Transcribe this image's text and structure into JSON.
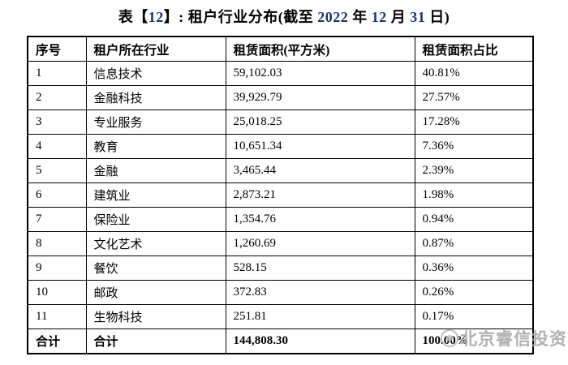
{
  "title": {
    "accent_color": "#1c3473",
    "segments": [
      {
        "text": "表【"
      },
      {
        "text": "12"
      },
      {
        "text": "】: 租户行业分布(截至 "
      },
      {
        "text": "2022"
      },
      {
        "text": " 年 "
      },
      {
        "text": "12"
      },
      {
        "text": " 月 "
      },
      {
        "text": "31"
      },
      {
        "text": " 日)"
      }
    ]
  },
  "table": {
    "headers": [
      "序号",
      "租户所在行业",
      "租赁面积(平方米)",
      "租赁面积占比"
    ],
    "rows": [
      {
        "no": "1",
        "industry": "信息技术",
        "area": "59,102.03",
        "share": "40.81%"
      },
      {
        "no": "2",
        "industry": "金融科技",
        "area": "39,929.79",
        "share": "27.57%"
      },
      {
        "no": "3",
        "industry": "专业服务",
        "area": "25,018.25",
        "share": "17.28%"
      },
      {
        "no": "4",
        "industry": "教育",
        "area": "10,651.34",
        "share": "7.36%"
      },
      {
        "no": "5",
        "industry": "金融",
        "area": "3,465.44",
        "share": "2.39%"
      },
      {
        "no": "6",
        "industry": "建筑业",
        "area": "2,873.21",
        "share": "1.98%"
      },
      {
        "no": "7",
        "industry": "保险业",
        "area": "1,354.76",
        "share": "0.94%"
      },
      {
        "no": "8",
        "industry": "文化艺术",
        "area": "1,260.69",
        "share": "0.87%"
      },
      {
        "no": "9",
        "industry": "餐饮",
        "area": "528.15",
        "share": "0.36%"
      },
      {
        "no": "10",
        "industry": "邮政",
        "area": "372.83",
        "share": "0.26%"
      },
      {
        "no": "11",
        "industry": "生物科技",
        "area": "251.81",
        "share": "0.17%"
      }
    ],
    "total": {
      "no": "合计",
      "industry": "合计",
      "area": "144,808.30",
      "share": "100.00%"
    }
  },
  "watermark": {
    "text": "北京睿信投资",
    "icon": "circle-logo"
  }
}
